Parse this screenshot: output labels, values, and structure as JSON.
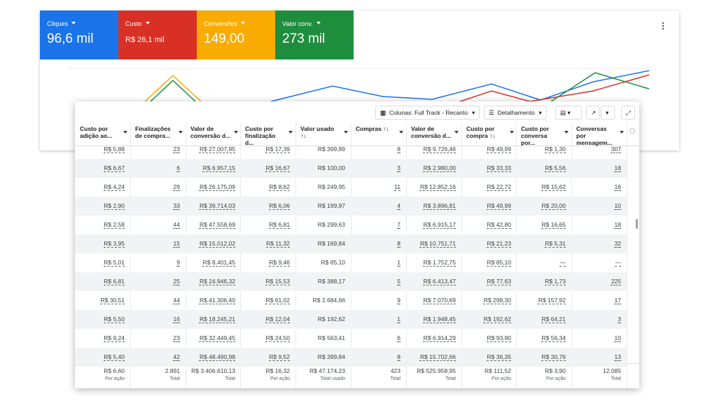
{
  "metrics": [
    {
      "label": "Cliques",
      "value": "96,6 mil"
    },
    {
      "label": "Custo",
      "value": "R$ 26,1 mil"
    },
    {
      "label": "Conversões",
      "value": "149,00"
    },
    {
      "label": "Valor conv.",
      "value": "273 mil"
    }
  ],
  "toolbar": {
    "columns_button": "Colunas: Full Track - Recanto",
    "breakdown_button": "Detalhamento"
  },
  "table": {
    "headers": [
      "Custo por adição ao...",
      "Finalizações de compra...",
      "Valor de conversão d...",
      "Custo por finalização d...",
      "Valor usado ↑↓",
      "Compras ↑↓",
      "Valor de conversão d...",
      "Custo por compra ↑↓",
      "Custo por conversa por...",
      "Conversas por mensagem..."
    ],
    "rows": [
      [
        "R$ 5,88",
        "23",
        "R$ 27.007,95",
        "R$ 17,39",
        "R$ 399,89",
        "8",
        "R$ 9.726,46",
        "R$ 49,99",
        "R$ 1,30",
        "307"
      ],
      [
        "R$ 6,67",
        "6",
        "R$ 6.957,15",
        "R$ 16,67",
        "R$ 100,00",
        "3",
        "R$ 2.980,00",
        "R$ 33,33",
        "R$ 5,56",
        "18"
      ],
      [
        "R$ 4,24",
        "29",
        "R$ 26.175,09",
        "R$ 8,62",
        "R$ 249,95",
        "11",
        "R$ 12.852,16",
        "R$ 22,72",
        "R$ 15,62",
        "16"
      ],
      [
        "R$ 2,90",
        "33",
        "R$ 39.714,03",
        "R$ 6,06",
        "R$ 199,97",
        "4",
        "R$ 3.896,81",
        "R$ 49,99",
        "R$ 20,00",
        "10"
      ],
      [
        "R$ 2,58",
        "44",
        "R$ 47.558,69",
        "R$ 6,81",
        "R$ 299,63",
        "7",
        "R$ 6.915,17",
        "R$ 42,80",
        "R$ 16,65",
        "18"
      ],
      [
        "R$ 3,95",
        "15",
        "R$ 15.012,02",
        "R$ 11,32",
        "R$ 169,84",
        "8",
        "R$ 10.751,71",
        "R$ 21,23",
        "R$ 5,31",
        "32"
      ],
      [
        "R$ 5,01",
        "9",
        "R$ 8.401,45",
        "R$ 9,46",
        "R$ 85,10",
        "1",
        "R$ 1.752,75",
        "R$ 85,10",
        "—",
        "—"
      ],
      [
        "R$ 6,81",
        "25",
        "R$ 24.946,32",
        "R$ 15,53",
        "R$ 388,17",
        "5",
        "R$ 6.413,47",
        "R$ 77,63",
        "R$ 1,73",
        "225"
      ],
      [
        "R$ 30,51",
        "44",
        "R$ 41.306,40",
        "R$ 61,02",
        "R$ 2.684,66",
        "9",
        "R$ 7.070,69",
        "R$ 298,30",
        "R$ 157,92",
        "17"
      ],
      [
        "R$ 5,50",
        "16",
        "R$ 18.245,21",
        "R$ 12,04",
        "R$ 192,62",
        "1",
        "R$ 1.948,45",
        "R$ 192,62",
        "R$ 64,21",
        "3"
      ],
      [
        "R$ 9,24",
        "23",
        "R$ 32.449,45",
        "R$ 24,50",
        "R$ 563,41",
        "6",
        "R$ 6.914,29",
        "R$ 93,90",
        "R$ 56,34",
        "10"
      ],
      [
        "R$ 5,40",
        "42",
        "R$ 48.490,98",
        "R$ 9,52",
        "R$ 399,84",
        "8",
        "R$ 15.702,66",
        "R$ 36,35",
        "R$ 30,76",
        "13"
      ]
    ],
    "totals": [
      {
        "value": "R$ 6,60",
        "label": "Por ação"
      },
      {
        "value": "2.891",
        "label": "Total"
      },
      {
        "value": "R$ 3.406.610,13",
        "label": "Total"
      },
      {
        "value": "R$ 16,32",
        "label": "Por ação"
      },
      {
        "value": "R$ 47.174,23",
        "label": "Total usado"
      },
      {
        "value": "423",
        "label": "Total"
      },
      {
        "value": "R$ 525.958,95",
        "label": "Total"
      },
      {
        "value": "R$ 111,52",
        "label": "Por ação"
      },
      {
        "value": "R$ 3,90",
        "label": "Por ação"
      },
      {
        "value": "12.085",
        "label": "Total"
      }
    ]
  }
}
